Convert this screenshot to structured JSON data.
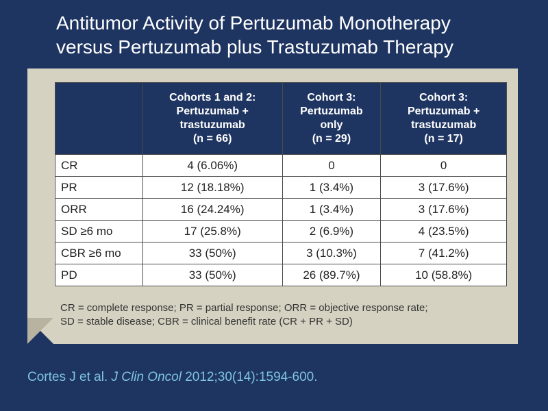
{
  "slide": {
    "title_lines": [
      "Antitumor Activity of Pertuzumab Monotherapy",
      "versus Pertuzumab plus Trastuzumab Therapy"
    ]
  },
  "table": {
    "columns": [
      {
        "lines": [
          "Cohorts 1 and 2:",
          "Pertuzumab +",
          "trastuzumab",
          "(n = 66)"
        ]
      },
      {
        "lines": [
          "Cohort 3:",
          "Pertuzumab",
          "only",
          "(n = 29)"
        ]
      },
      {
        "lines": [
          "Cohort 3:",
          "Pertuzumab +",
          "trastuzumab",
          "(n = 17)"
        ]
      }
    ],
    "rows": [
      {
        "label": "CR",
        "cells": [
          "4 (6.06%)",
          "0",
          "0"
        ]
      },
      {
        "label": "PR",
        "cells": [
          "12 (18.18%)",
          "1 (3.4%)",
          "3 (17.6%)"
        ]
      },
      {
        "label": "ORR",
        "cells": [
          "16 (24.24%)",
          "1 (3.4%)",
          "3 (17.6%)"
        ]
      },
      {
        "label": "SD ≥6 mo",
        "cells": [
          "17 (25.8%)",
          "2 (6.9%)",
          "4 (23.5%)"
        ]
      },
      {
        "label": "CBR ≥6 mo",
        "cells": [
          "33 (50%)",
          "3 (10.3%)",
          "7 (41.2%)"
        ]
      },
      {
        "label": "PD",
        "cells": [
          "33 (50%)",
          "26 (89.7%)",
          "10 (58.8%)"
        ]
      }
    ]
  },
  "footnote_lines": [
    "CR = complete response; PR = partial response; ORR = objective response rate;",
    "SD = stable disease; CBR = clinical benefit rate (CR + PR + SD)"
  ],
  "citation": {
    "authors": "Cortes J et al.",
    "journal": "J Clin Oncol",
    "reference": "2012;30(14):1594-600."
  },
  "colors": {
    "background": "#1e3461",
    "panel": "#d6d2c2",
    "header_fill": "#1e3461",
    "citation_text": "#7fc4e4"
  }
}
